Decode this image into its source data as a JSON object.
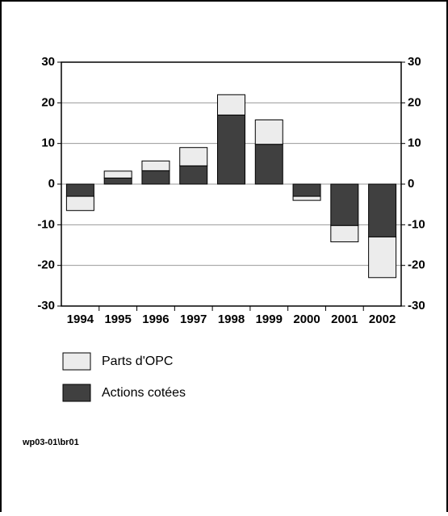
{
  "chart_data": {
    "type": "stacked-bar",
    "categories": [
      "1994",
      "1995",
      "1996",
      "1997",
      "1998",
      "1999",
      "2000",
      "2001",
      "2002"
    ],
    "series": [
      {
        "name": "Actions cotées",
        "color": "#404040",
        "values": [
          -3,
          1.5,
          3.3,
          4.5,
          17,
          9.8,
          -3,
          -10.2,
          -13
        ]
      },
      {
        "name": "Parts d'OPC",
        "color": "#ececec",
        "values": [
          -3.5,
          1.7,
          2.4,
          4.5,
          5,
          6,
          -1,
          -4,
          -10
        ]
      }
    ],
    "ylim": [
      -30,
      30
    ],
    "yticks": [
      -30,
      -20,
      -10,
      0,
      10,
      20,
      30
    ],
    "y2lim": [
      -30,
      30
    ],
    "y2ticks": [
      -30,
      -20,
      -10,
      0,
      10,
      20,
      30
    ],
    "grid": true,
    "annotation": "wp03-01\\br01"
  }
}
